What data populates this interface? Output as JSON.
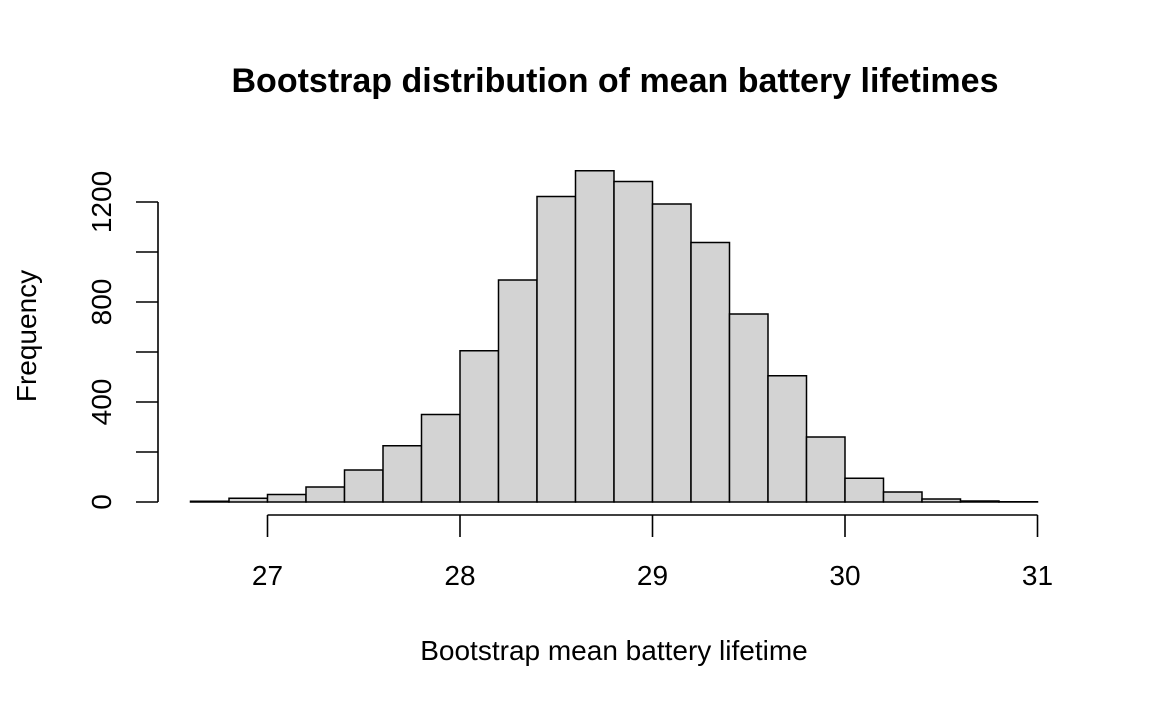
{
  "chart_data": {
    "type": "bar",
    "subtype": "histogram",
    "title": "Bootstrap distribution of mean battery lifetimes",
    "xlabel": "Bootstrap mean battery lifetime",
    "ylabel": "Frequency",
    "bin_width": 0.2,
    "bins": [
      {
        "start": 26.6,
        "end": 26.8,
        "count": 3
      },
      {
        "start": 26.8,
        "end": 27.0,
        "count": 15
      },
      {
        "start": 27.0,
        "end": 27.2,
        "count": 30
      },
      {
        "start": 27.2,
        "end": 27.4,
        "count": 60
      },
      {
        "start": 27.4,
        "end": 27.6,
        "count": 128
      },
      {
        "start": 27.6,
        "end": 27.8,
        "count": 225
      },
      {
        "start": 27.8,
        "end": 28.0,
        "count": 350
      },
      {
        "start": 28.0,
        "end": 28.2,
        "count": 605
      },
      {
        "start": 28.2,
        "end": 28.4,
        "count": 888
      },
      {
        "start": 28.4,
        "end": 28.6,
        "count": 1222
      },
      {
        "start": 28.6,
        "end": 28.8,
        "count": 1325
      },
      {
        "start": 28.8,
        "end": 29.0,
        "count": 1282
      },
      {
        "start": 29.0,
        "end": 29.2,
        "count": 1192
      },
      {
        "start": 29.2,
        "end": 29.4,
        "count": 1038
      },
      {
        "start": 29.4,
        "end": 29.6,
        "count": 752
      },
      {
        "start": 29.6,
        "end": 29.8,
        "count": 505
      },
      {
        "start": 29.8,
        "end": 30.0,
        "count": 260
      },
      {
        "start": 30.0,
        "end": 30.2,
        "count": 95
      },
      {
        "start": 30.2,
        "end": 30.4,
        "count": 40
      },
      {
        "start": 30.4,
        "end": 30.6,
        "count": 12
      },
      {
        "start": 30.6,
        "end": 30.8,
        "count": 4
      },
      {
        "start": 30.8,
        "end": 31.0,
        "count": 1
      }
    ],
    "xlim": [
      26.6,
      31.0
    ],
    "ylim": [
      0,
      1325
    ],
    "x_ticks": [
      27,
      28,
      29,
      30,
      31
    ],
    "x_tick_labels": [
      "27",
      "28",
      "29",
      "30",
      "31"
    ],
    "y_ticks": [
      0,
      200,
      400,
      600,
      800,
      1000,
      1200
    ],
    "y_tick_labels": [
      "0",
      "",
      "400",
      "",
      "800",
      "",
      "1200"
    ],
    "bar_fill": "#d3d3d3",
    "bar_stroke": "#000000",
    "grid": false,
    "legend": "none"
  }
}
